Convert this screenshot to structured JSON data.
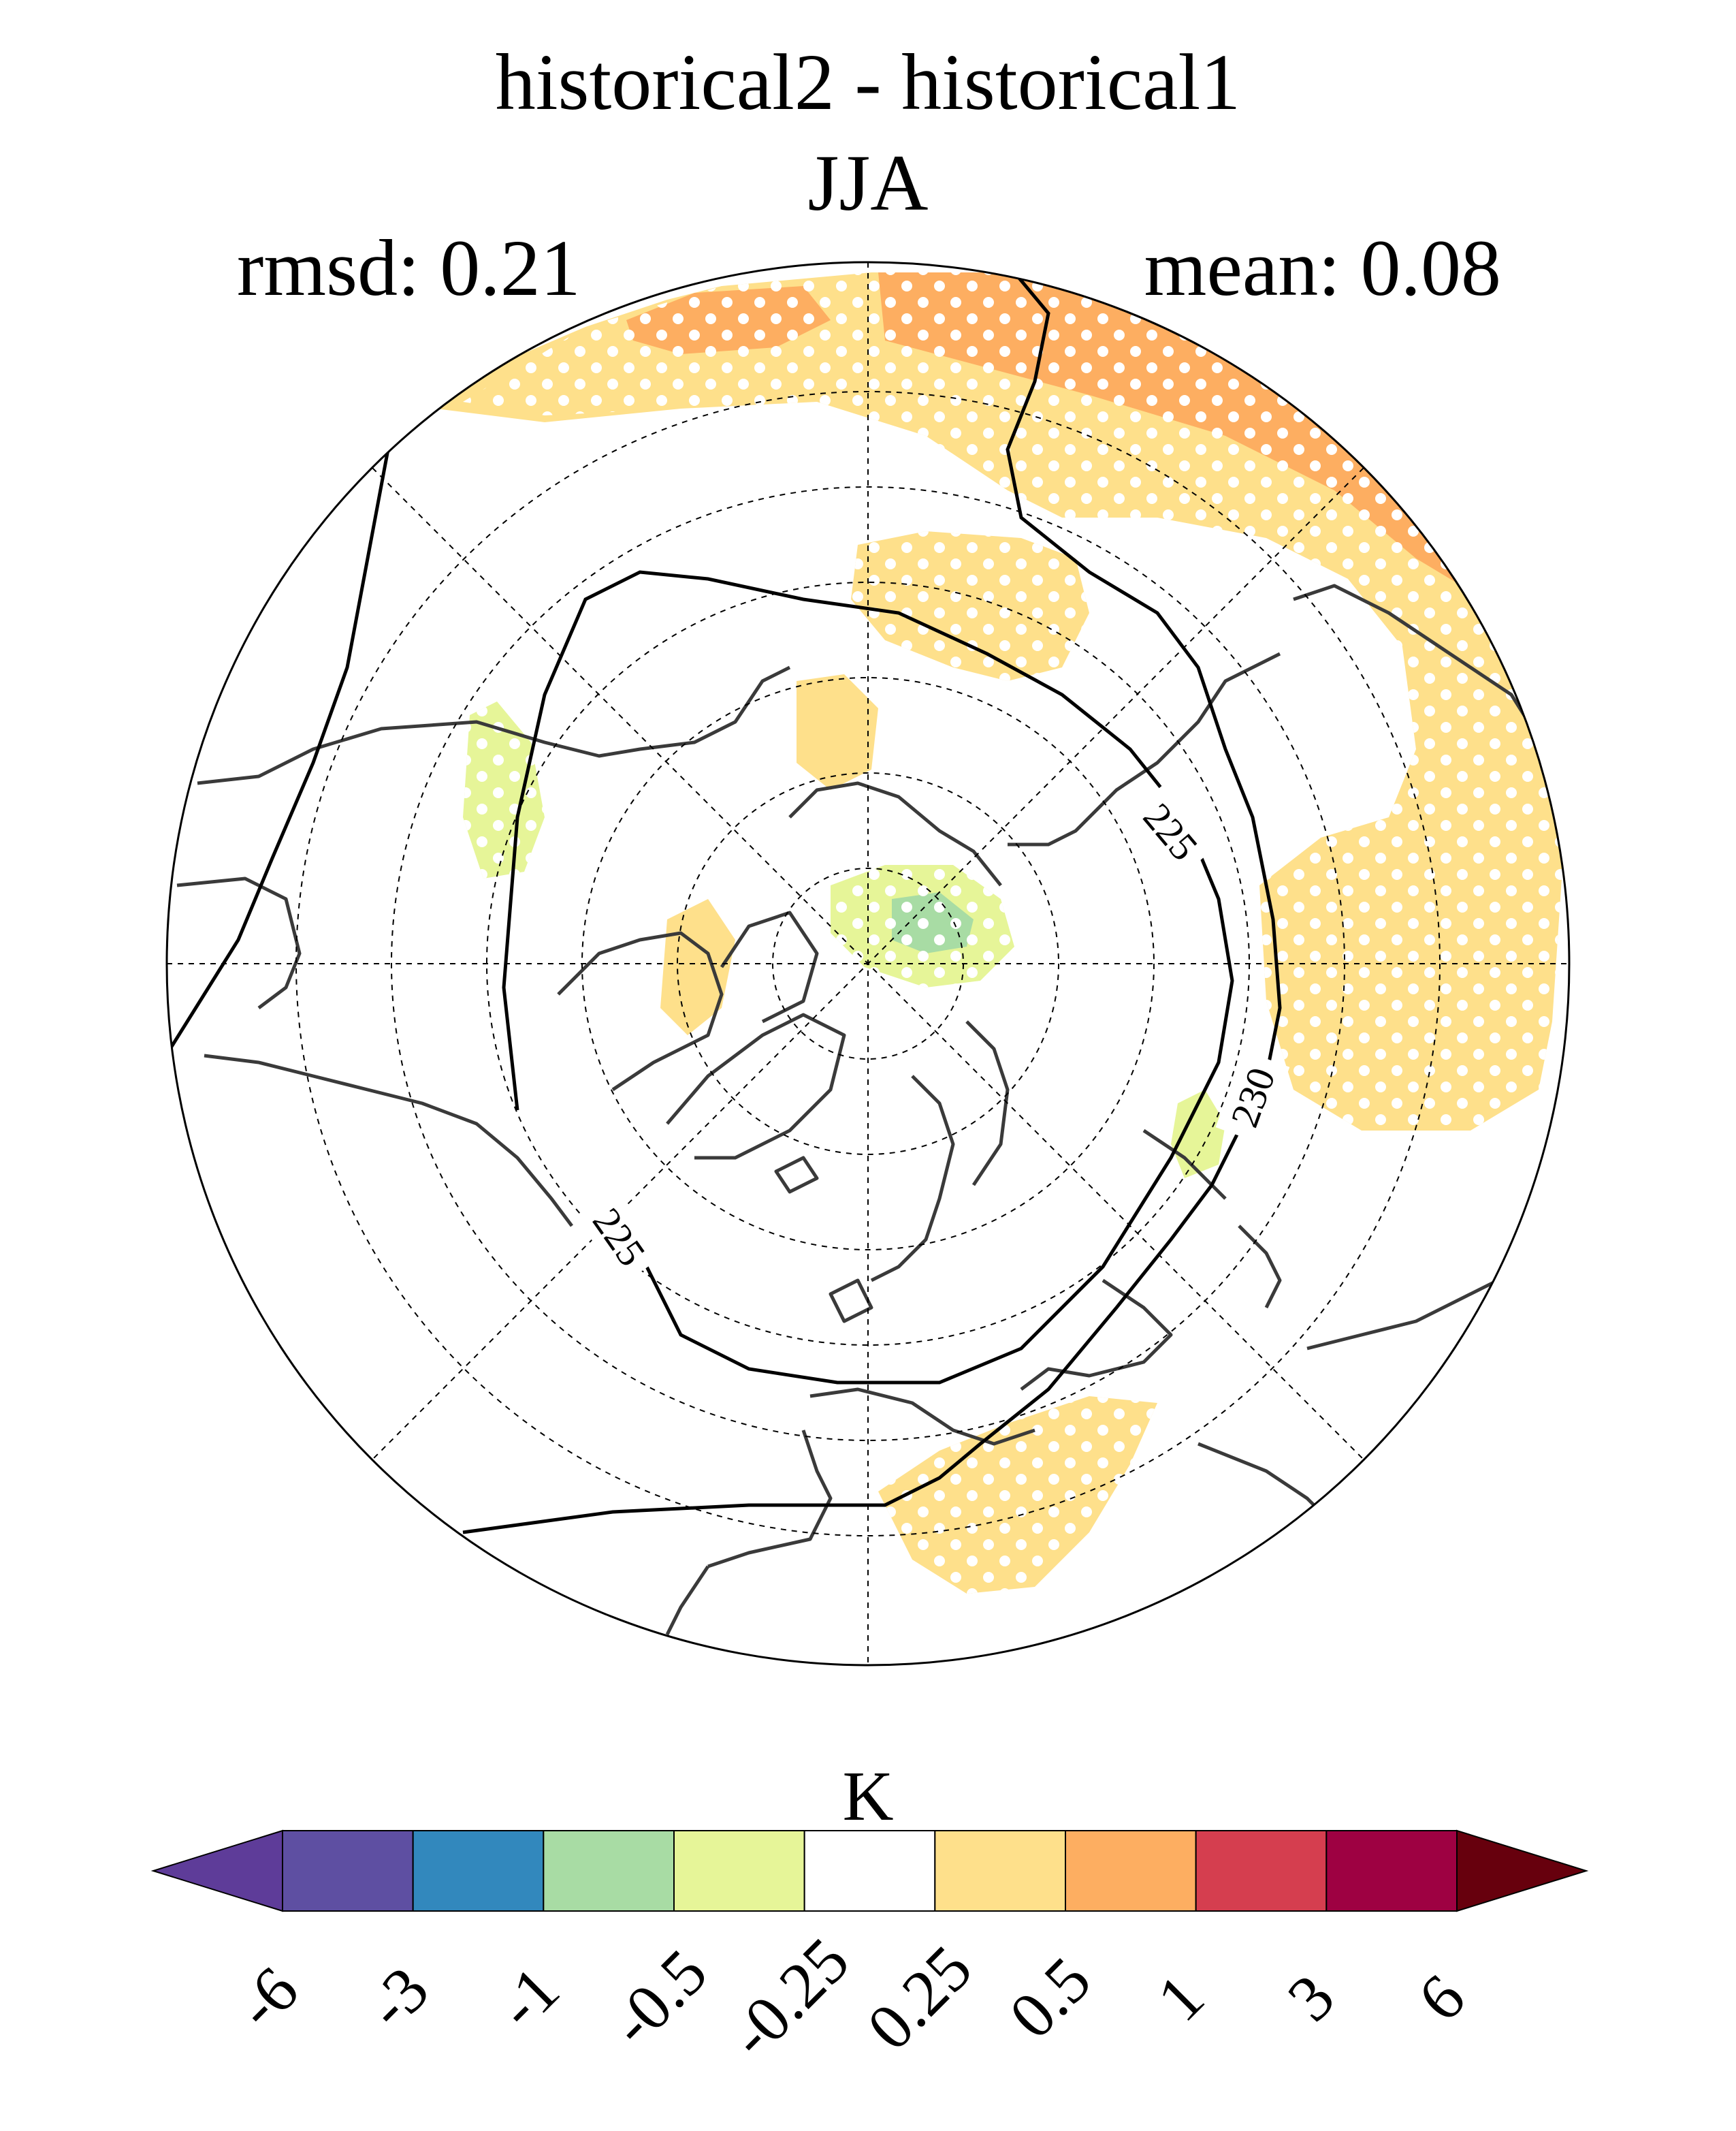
{
  "figure": {
    "title": "historical2 - historical1",
    "season": "JJA",
    "rmsd_label": "rmsd: 0.21",
    "mean_label": "mean: 0.08"
  },
  "map": {
    "projection": "north-polar-stereographic",
    "contour_labels": [
      "225",
      "225",
      "230"
    ],
    "stippling": "white dots over significant regions"
  },
  "colorbar": {
    "unit": "K",
    "ticks": [
      "-6",
      "-3",
      "-1",
      "-0.5",
      "-0.25",
      "0.25",
      "0.5",
      "1",
      "3",
      "6"
    ],
    "colors": [
      "#5e3c99",
      "#5e4fa2",
      "#3288bd",
      "#a8dca4",
      "#e6f598",
      "#ffffff",
      "#fee08b",
      "#fdae61",
      "#d53e4f",
      "#9e0142",
      "#67000d"
    ]
  },
  "chart_data": {
    "type": "heatmap",
    "title": "historical2 - historical1",
    "subtitle": "JJA",
    "colorbar_unit": "K",
    "levels": [
      -6,
      -3,
      -1,
      -0.5,
      -0.25,
      0.25,
      0.5,
      1,
      3,
      6
    ],
    "rmsd": 0.21,
    "mean": 0.08,
    "contour_levels": [
      225,
      230
    ]
  }
}
